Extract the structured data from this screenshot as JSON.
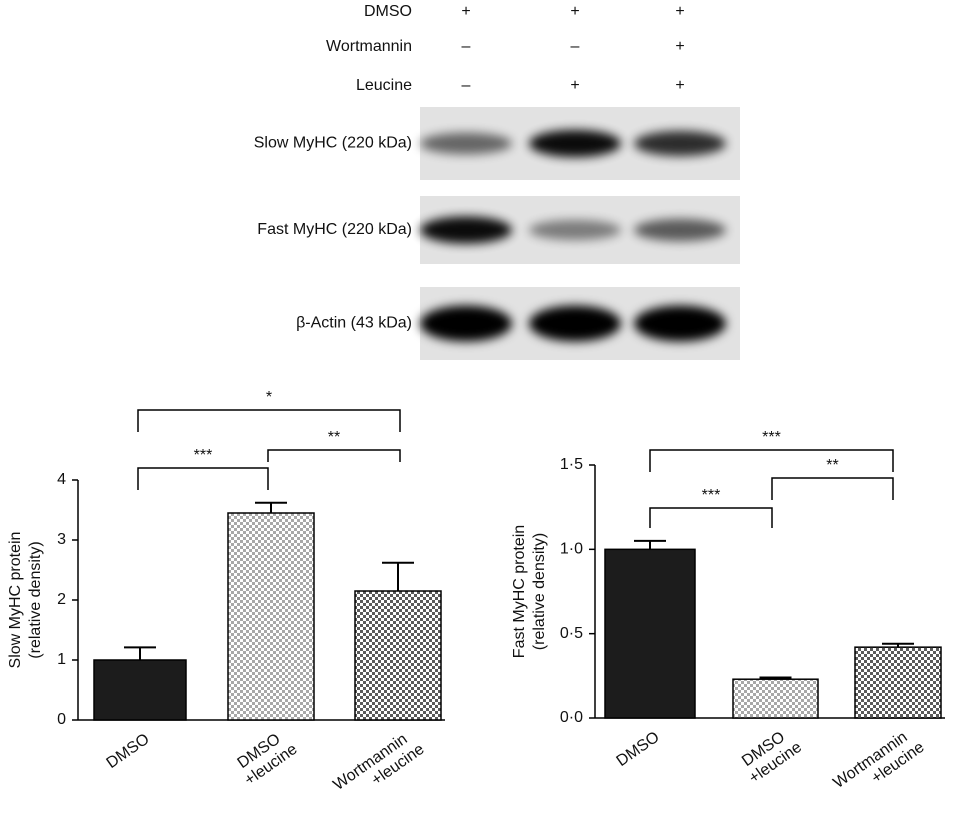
{
  "blot": {
    "treatments": [
      {
        "name": "DMSO",
        "signs": [
          "+",
          "+",
          "+"
        ]
      },
      {
        "name": "Wortmannin",
        "signs": [
          "–",
          "–",
          "+"
        ]
      },
      {
        "name": "Leucine",
        "signs": [
          "–",
          "+",
          "+"
        ]
      }
    ],
    "bands": [
      "Slow MyHC (220 kDa)",
      "Fast MyHC (220 kDa)",
      "β-Actin (43 kDa)"
    ]
  },
  "chart_data": [
    {
      "type": "bar",
      "ylabel": [
        "Slow  MyHC protein",
        "(relative density)"
      ],
      "categories": [
        [
          "DMSO"
        ],
        [
          "DMSO",
          "+leucine"
        ],
        [
          "Wortmannin",
          "+leucine"
        ]
      ],
      "series": [
        {
          "values": [
            1.0,
            3.45,
            2.15
          ],
          "errors": [
            0.21,
            0.17,
            0.47
          ],
          "colors": [
            "#1c1c1c",
            "#a8a8a8",
            "#5a5a5a"
          ]
        }
      ],
      "ylim": [
        0,
        4
      ],
      "yticks": [
        0,
        1,
        2,
        3,
        4
      ],
      "annotations": [
        "***",
        "**",
        "*"
      ]
    },
    {
      "type": "bar",
      "ylabel": [
        "Fast  MyHC protein",
        "(relative density)"
      ],
      "categories": [
        [
          "DMSO"
        ],
        [
          "DMSO",
          "+leucine"
        ],
        [
          "Wortmannin",
          "+leucine"
        ]
      ],
      "series": [
        {
          "values": [
            1.0,
            0.23,
            0.42
          ],
          "errors": [
            0.05,
            0.01,
            0.02
          ],
          "colors": [
            "#1c1c1c",
            "#a8a8a8",
            "#5a5a5a"
          ]
        }
      ],
      "ylim": [
        0,
        1.5
      ],
      "yticks": [
        {
          "value": 0,
          "label": "0·0"
        },
        {
          "value": 0.5,
          "label": "0·5"
        },
        {
          "value": 1,
          "label": "1·0"
        },
        {
          "value": 1.5,
          "label": "1·5"
        }
      ],
      "annotations": [
        "***",
        "**",
        "***"
      ]
    }
  ]
}
